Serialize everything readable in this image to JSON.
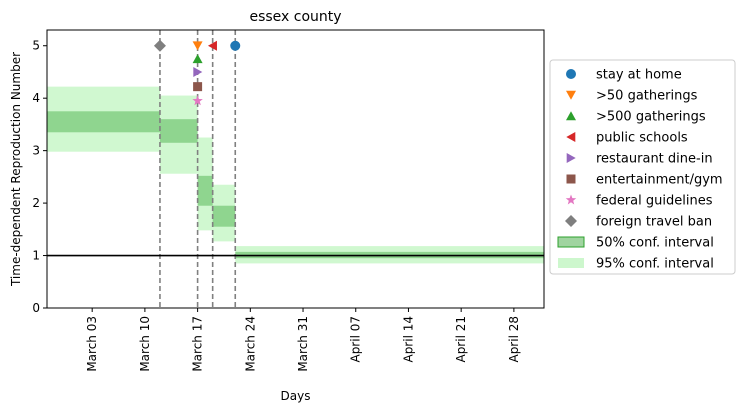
{
  "chart_data": {
    "type": "step",
    "title": "essex county",
    "xlabel": "Days",
    "ylabel": "Time-dependent Reproduction Number",
    "xlim": [
      "2020-02-26",
      "2020-05-02"
    ],
    "ylim": [
      0,
      5.3
    ],
    "x_ticks": [
      {
        "date": "2020-03-03",
        "label": "March 03"
      },
      {
        "date": "2020-03-10",
        "label": "March 10"
      },
      {
        "date": "2020-03-17",
        "label": "March 17"
      },
      {
        "date": "2020-03-24",
        "label": "March 24"
      },
      {
        "date": "2020-03-31",
        "label": "March 31"
      },
      {
        "date": "2020-04-07",
        "label": "April 07"
      },
      {
        "date": "2020-04-14",
        "label": "April 14"
      },
      {
        "date": "2020-04-21",
        "label": "April 21"
      },
      {
        "date": "2020-04-28",
        "label": "April 28"
      }
    ],
    "y_ticks": [
      0,
      1,
      2,
      3,
      4,
      5
    ],
    "reference_line": 1,
    "segments": [
      {
        "start": "2020-02-26",
        "end": "2020-03-12",
        "ci50": [
          3.35,
          3.75
        ],
        "ci95": [
          2.98,
          4.22
        ]
      },
      {
        "start": "2020-03-12",
        "end": "2020-03-17",
        "ci50": [
          3.15,
          3.6
        ],
        "ci95": [
          2.56,
          4.05
        ]
      },
      {
        "start": "2020-03-17",
        "end": "2020-03-19",
        "ci50": [
          1.95,
          2.52
        ],
        "ci95": [
          1.48,
          3.25
        ]
      },
      {
        "start": "2020-03-19",
        "end": "2020-03-22",
        "ci50": [
          1.55,
          1.95
        ],
        "ci95": [
          1.27,
          2.35
        ]
      },
      {
        "start": "2020-03-22",
        "end": "2020-05-02",
        "ci50": [
          0.95,
          1.07
        ],
        "ci95": [
          0.85,
          1.18
        ]
      }
    ],
    "interventions": [
      {
        "name": "stay at home",
        "date": "2020-03-22",
        "y": 5.0,
        "marker": "circle",
        "color": "#1f77b4"
      },
      {
        "name": ">50 gatherings",
        "date": "2020-03-17",
        "y": 5.0,
        "marker": "triangle-down",
        "color": "#ff7f0e"
      },
      {
        "name": ">500 gatherings",
        "date": "2020-03-17",
        "y": 4.75,
        "marker": "triangle-up",
        "color": "#2ca02c"
      },
      {
        "name": "public schools",
        "date": "2020-03-19",
        "y": 5.0,
        "marker": "triangle-left",
        "color": "#d62728"
      },
      {
        "name": "restaurant dine-in",
        "date": "2020-03-17",
        "y": 4.5,
        "marker": "triangle-right",
        "color": "#9467bd"
      },
      {
        "name": "entertainment/gym",
        "date": "2020-03-17",
        "y": 4.22,
        "marker": "square",
        "color": "#8c564b"
      },
      {
        "name": "federal guidelines",
        "date": "2020-03-17",
        "y": 3.95,
        "marker": "star",
        "color": "#e377c2"
      },
      {
        "name": "foreign travel ban",
        "date": "2020-03-12",
        "y": 5.0,
        "marker": "diamond",
        "color": "#7f7f7f"
      }
    ],
    "vlines": [
      "2020-03-12",
      "2020-03-17",
      "2020-03-19",
      "2020-03-22"
    ],
    "legend": {
      "placement": "center-right outside",
      "ci50_label": "50% conf. interval",
      "ci95_label": "95% conf. interval"
    },
    "colors": {
      "ci50": "#2ca02c",
      "ci95": "#90ee90",
      "vline": "#808080",
      "reference": "#000000"
    }
  }
}
